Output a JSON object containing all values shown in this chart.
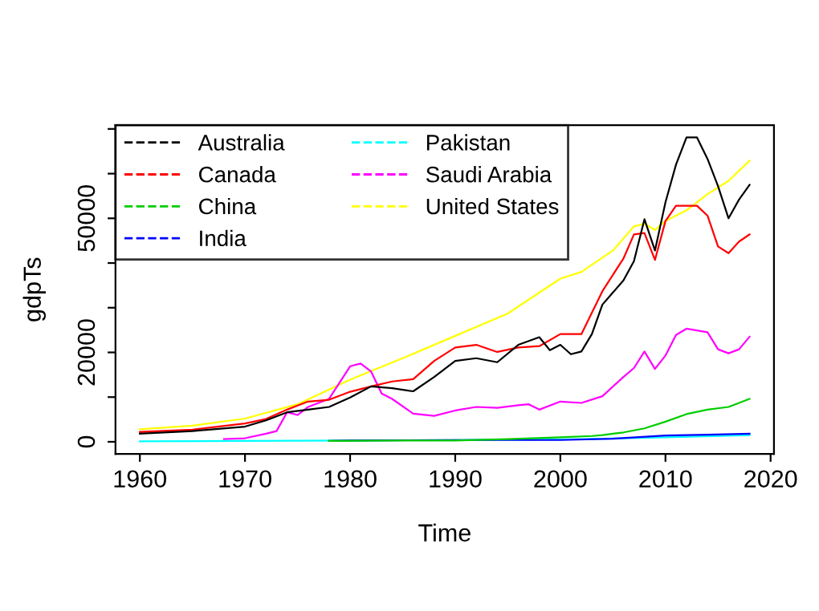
{
  "chart_data": {
    "type": "line",
    "xlabel": "Time",
    "ylabel": "gdpTs",
    "xlim": [
      1957.68,
      2020.32
    ],
    "ylim": [
      -2724,
      70824
    ],
    "xticks": [
      1960,
      1970,
      1980,
      1990,
      2000,
      2010,
      2020
    ],
    "yticks": [
      0,
      {
        "value": 10000,
        "label": null
      },
      20000,
      {
        "value": 30000,
        "label": null
      },
      {
        "value": 40000,
        "label": null
      },
      50000,
      {
        "value": 60000,
        "label": null
      },
      {
        "value": 70000,
        "label": null
      }
    ],
    "grid": false,
    "legend": "top left",
    "line_style": "solid",
    "marker": "none",
    "series": [
      {
        "name": "Australia",
        "color": "#000000",
        "x": [
          1960,
          1965,
          1970,
          1972,
          1974,
          1976,
          1978,
          1980,
          1982,
          1984,
          1986,
          1988,
          1990,
          1992,
          1994,
          1996,
          1998,
          1999,
          2000,
          2001,
          2002,
          2003,
          2004,
          2006,
          2007,
          2008,
          2009,
          2010,
          2011,
          2012,
          2013,
          2014,
          2015,
          2016,
          2017,
          2018
        ],
        "values": [
          1800,
          2400,
          3400,
          4800,
          6600,
          7200,
          7800,
          9900,
          12400,
          12000,
          11300,
          14500,
          18100,
          18700,
          17800,
          21700,
          23400,
          20500,
          21700,
          19600,
          20200,
          24100,
          30700,
          36100,
          40400,
          49800,
          42800,
          53600,
          62000,
          68100,
          68100,
          63300,
          57200,
          50000,
          54200,
          57500
        ]
      },
      {
        "name": "Canada",
        "color": "#ff0000",
        "x": [
          1960,
          1965,
          1970,
          1972,
          1974,
          1976,
          1978,
          1980,
          1982,
          1984,
          1986,
          1988,
          1990,
          1992,
          1994,
          1996,
          1998,
          2000,
          2002,
          2004,
          2006,
          2007,
          2008,
          2009,
          2010,
          2011,
          2012,
          2013,
          2014,
          2015,
          2016,
          2017,
          2018
        ],
        "values": [
          2200,
          2700,
          4100,
          5100,
          7200,
          9000,
          9400,
          11200,
          12400,
          13500,
          14000,
          18100,
          21100,
          21700,
          20100,
          21100,
          21400,
          24100,
          24100,
          33700,
          41000,
          46400,
          46700,
          40700,
          49400,
          52800,
          52800,
          52800,
          50600,
          43700,
          42200,
          44800,
          46400
        ]
      },
      {
        "name": "China",
        "color": "#00cd00",
        "x": [
          1978,
          1985,
          1990,
          1995,
          2000,
          2003,
          2004,
          2005,
          2006,
          2008,
          2010,
          2012,
          2014,
          2016,
          2017,
          2018
        ],
        "values": [
          200,
          300,
          300,
          600,
          1000,
          1300,
          1500,
          1800,
          2100,
          3000,
          4500,
          6200,
          7200,
          7800,
          8700,
          9600
        ]
      },
      {
        "name": "India",
        "color": "#0000ff",
        "x": [
          1978,
          1980,
          1990,
          2000,
          2005,
          2010,
          2014,
          2018
        ],
        "values": [
          200,
          300,
          400,
          400,
          700,
          1400,
          1600,
          1800
        ]
      },
      {
        "name": "Pakistan",
        "color": "#00ffff",
        "x": [
          1960,
          1970,
          1980,
          1990,
          2000,
          2010,
          2018
        ],
        "values": [
          100,
          200,
          300,
          400,
          500,
          1000,
          1500
        ]
      },
      {
        "name": "Saudi Arabia",
        "color": "#ff00ff",
        "x": [
          1968,
          1970,
          1972,
          1973,
          1974,
          1975,
          1976,
          1978,
          1980,
          1981,
          1982,
          1983,
          1984,
          1986,
          1988,
          1990,
          1992,
          1994,
          1996,
          1997,
          1998,
          2000,
          2002,
          2004,
          2006,
          2007,
          2008,
          2009,
          2010,
          2011,
          2012,
          2013,
          2014,
          2015,
          2016,
          2017,
          2018
        ],
        "values": [
          600,
          800,
          1800,
          2400,
          6600,
          6000,
          7800,
          9600,
          16900,
          17500,
          15700,
          10800,
          9600,
          6300,
          5800,
          7000,
          7800,
          7600,
          8200,
          8400,
          7200,
          9000,
          8700,
          10200,
          14500,
          16500,
          20200,
          16300,
          19300,
          23900,
          25300,
          24900,
          24500,
          20700,
          19800,
          20700,
          23500
        ]
      },
      {
        "name": "United States",
        "color": "#ffff00",
        "x": [
          1960,
          1965,
          1970,
          1975,
          1980,
          1985,
          1990,
          1995,
          2000,
          2002,
          2005,
          2007,
          2008,
          2009,
          2010,
          2012,
          2014,
          2016,
          2018
        ],
        "values": [
          2800,
          3600,
          5200,
          8400,
          13900,
          18700,
          23700,
          28700,
          36500,
          38000,
          42800,
          48200,
          48800,
          47400,
          49400,
          51800,
          55400,
          58400,
          62900
        ]
      }
    ]
  }
}
